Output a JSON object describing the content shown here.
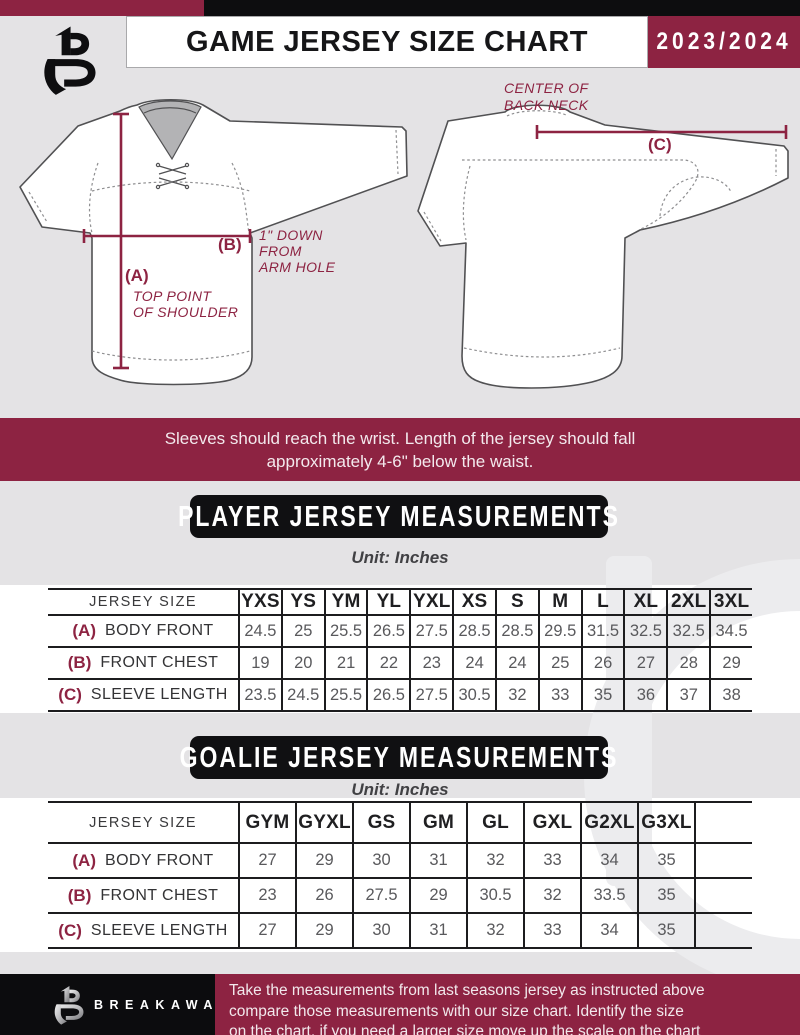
{
  "header": {
    "title": "GAME JERSEY SIZE CHART",
    "season": "2023/2024"
  },
  "diagram": {
    "front": {
      "label_a": "(A)",
      "note_a": [
        "TOP POINT",
        "OF SHOULDER"
      ],
      "label_b": "(B)",
      "note_b": [
        "1\" DOWN",
        "FROM",
        "ARM HOLE"
      ]
    },
    "back": {
      "label_c": "(C)",
      "note_c": [
        "CENTER OF",
        "BACK NECK"
      ]
    }
  },
  "notice": {
    "line1": "Sleeves should reach the wrist. Length of the jersey should fall",
    "line2": "approximately 4-6\" below the waist."
  },
  "player_table": {
    "title": "PLAYER JERSEY MEASUREMENTS",
    "unit": "Unit: Inches",
    "size_header": "JERSEY SIZE",
    "columns": [
      "YXS",
      "YS",
      "YM",
      "YL",
      "YXL",
      "XS",
      "S",
      "M",
      "L",
      "XL",
      "2XL",
      "3XL"
    ],
    "rows": [
      {
        "key": "(A)",
        "label": "BODY FRONT",
        "values": [
          "24.5",
          "25",
          "25.5",
          "26.5",
          "27.5",
          "28.5",
          "28.5",
          "29.5",
          "31.5",
          "32.5",
          "32.5",
          "34.5"
        ]
      },
      {
        "key": "(B)",
        "label": "FRONT CHEST",
        "values": [
          "19",
          "20",
          "21",
          "22",
          "23",
          "24",
          "24",
          "25",
          "26",
          "27",
          "28",
          "29"
        ]
      },
      {
        "key": "(C)",
        "label": "SLEEVE LENGTH",
        "values": [
          "23.5",
          "24.5",
          "25.5",
          "26.5",
          "27.5",
          "30.5",
          "32",
          "33",
          "35",
          "36",
          "37",
          "38"
        ]
      }
    ]
  },
  "goalie_table": {
    "title": "GOALIE JERSEY MEASUREMENTS",
    "unit": "Unit: Inches",
    "size_header": "JERSEY SIZE",
    "columns": [
      "GYM",
      "GYXL",
      "GS",
      "GM",
      "GL",
      "GXL",
      "G2XL",
      "G3XL"
    ],
    "trailing_blank": true,
    "rows": [
      {
        "key": "(A)",
        "label": "BODY FRONT",
        "values": [
          "27",
          "29",
          "30",
          "31",
          "32",
          "33",
          "34",
          "35"
        ]
      },
      {
        "key": "(B)",
        "label": "FRONT CHEST",
        "values": [
          "23",
          "26",
          "27.5",
          "29",
          "30.5",
          "32",
          "33.5",
          "35"
        ]
      },
      {
        "key": "(C)",
        "label": "SLEEVE LENGTH",
        "values": [
          "27",
          "29",
          "30",
          "31",
          "32",
          "33",
          "34",
          "35"
        ]
      }
    ]
  },
  "footer": {
    "brand": "BREAKAWAY",
    "lines": [
      "Take the measurements from last seasons jersey as instructed above",
      "compare those measurements  with our size chart. Identify the size",
      "on the chart, if you need a larger size move up the scale on the chart"
    ]
  },
  "colors": {
    "maroon": "#8d2342",
    "black": "#0d0d0f",
    "page_gray": "#e4e3e5",
    "value_gray": "#59595c",
    "watermark": "#ececee"
  }
}
